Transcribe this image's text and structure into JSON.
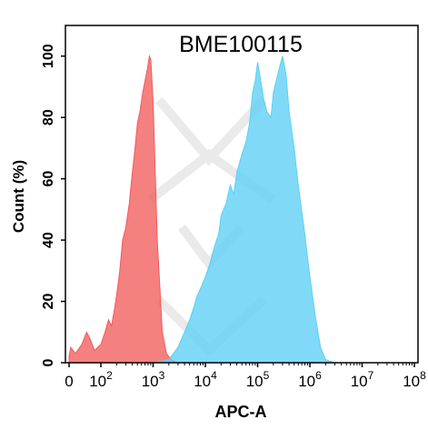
{
  "chart_data": {
    "type": "area",
    "title": "BME100115",
    "xlabel": "APC-A",
    "ylabel": "Count  (%)",
    "x_scale": "log",
    "xlim": [
      0,
      100000000
    ],
    "ylim": [
      0,
      110
    ],
    "y_ticks": [
      0,
      20,
      40,
      60,
      80,
      100
    ],
    "x_ticks": [
      {
        "value": 0,
        "base": "0",
        "exp": ""
      },
      {
        "value": 100,
        "base": "10",
        "exp": "2"
      },
      {
        "value": 1000,
        "base": "10",
        "exp": "3"
      },
      {
        "value": 10000,
        "base": "10",
        "exp": "4"
      },
      {
        "value": 100000,
        "base": "10",
        "exp": "5"
      },
      {
        "value": 1000000,
        "base": "10",
        "exp": "6"
      },
      {
        "value": 10000000,
        "base": "10",
        "exp": "7"
      },
      {
        "value": 100000000,
        "base": "10",
        "exp": "8"
      }
    ],
    "grid": false,
    "legend": "none",
    "series": [
      {
        "color": "#f25c5c",
        "points": [
          [
            0,
            2
          ],
          [
            5,
            5
          ],
          [
            20,
            3
          ],
          [
            40,
            6
          ],
          [
            55,
            10
          ],
          [
            65,
            8
          ],
          [
            80,
            4
          ],
          [
            100,
            6
          ],
          [
            120,
            10
          ],
          [
            140,
            14
          ],
          [
            160,
            12
          ],
          [
            180,
            17
          ],
          [
            200,
            22
          ],
          [
            230,
            30
          ],
          [
            260,
            40
          ],
          [
            300,
            44
          ],
          [
            350,
            52
          ],
          [
            400,
            62
          ],
          [
            450,
            70
          ],
          [
            500,
            78
          ],
          [
            560,
            82
          ],
          [
            630,
            88
          ],
          [
            700,
            92
          ],
          [
            780,
            96
          ],
          [
            850,
            100
          ],
          [
            900,
            99
          ],
          [
            1000,
            85
          ],
          [
            1200,
            40
          ],
          [
            1500,
            10
          ],
          [
            1800,
            3
          ],
          [
            2200,
            1
          ],
          [
            3000,
            0
          ]
        ]
      },
      {
        "color": "#5ccff5",
        "points": [
          [
            1000,
            0
          ],
          [
            2000,
            1
          ],
          [
            3000,
            5
          ],
          [
            4000,
            10
          ],
          [
            5000,
            14
          ],
          [
            6000,
            18
          ],
          [
            7000,
            22
          ],
          [
            8000,
            24
          ],
          [
            10000,
            28
          ],
          [
            12000,
            32
          ],
          [
            15000,
            38
          ],
          [
            18000,
            42
          ],
          [
            20000,
            48
          ],
          [
            25000,
            52
          ],
          [
            30000,
            58
          ],
          [
            35000,
            55
          ],
          [
            40000,
            62
          ],
          [
            50000,
            68
          ],
          [
            60000,
            72
          ],
          [
            70000,
            78
          ],
          [
            80000,
            88
          ],
          [
            90000,
            92
          ],
          [
            100000,
            98
          ],
          [
            110000,
            94
          ],
          [
            130000,
            86
          ],
          [
            150000,
            82
          ],
          [
            180000,
            80
          ],
          [
            200000,
            88
          ],
          [
            250000,
            95
          ],
          [
            300000,
            100
          ],
          [
            350000,
            94
          ],
          [
            400000,
            82
          ],
          [
            500000,
            70
          ],
          [
            600000,
            58
          ],
          [
            800000,
            42
          ],
          [
            1000000,
            28
          ],
          [
            1300000,
            14
          ],
          [
            1600000,
            5
          ],
          [
            2000000,
            1
          ],
          [
            3000000,
            0
          ]
        ]
      }
    ]
  }
}
